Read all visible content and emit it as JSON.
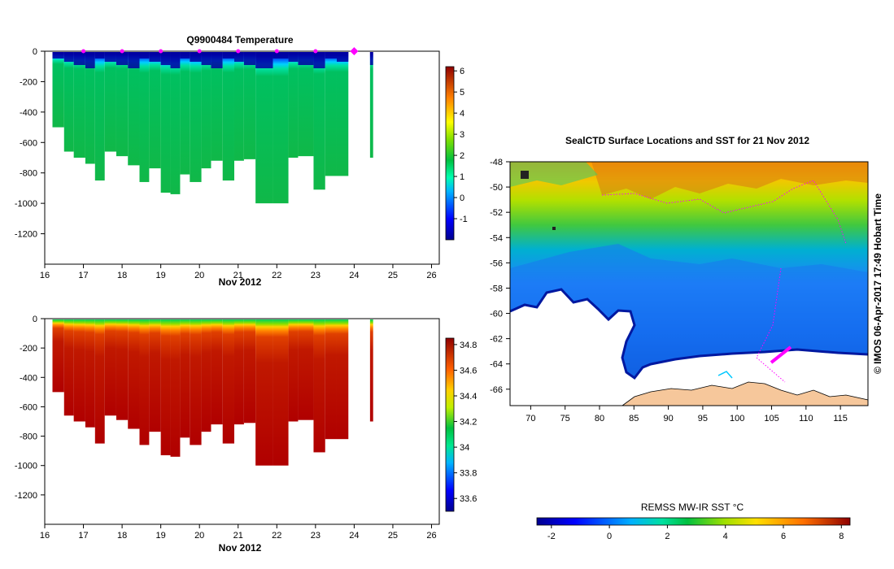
{
  "chart_data": [
    {
      "type": "heatmap",
      "title": "Q9900484  Temperature",
      "xlabel": "Nov 2012",
      "xlim": [
        16,
        26.2
      ],
      "ylim": [
        -1400,
        0
      ],
      "x_ticks": [
        "16",
        "17",
        "18",
        "19",
        "20",
        "21",
        "22",
        "23",
        "24",
        "25",
        "26"
      ],
      "y_ticks": [
        "0",
        "-200",
        "-400",
        "-600",
        "-800",
        "-1000",
        "-1200"
      ],
      "colorbar": {
        "range": [
          -2,
          6.2
        ],
        "ticks": [
          "6",
          "5",
          "4",
          "3",
          "2",
          "1",
          "0",
          "-1"
        ]
      },
      "profile_markers_day": [
        17,
        18,
        19,
        20,
        21,
        22,
        23
      ],
      "highlight_marker_day": 24,
      "profiles": {
        "day": [
          16.2,
          16.5,
          16.75,
          17.05,
          17.3,
          17.55,
          17.85,
          18.15,
          18.45,
          18.7,
          19.0,
          19.25,
          19.5,
          19.75,
          20.05,
          20.3,
          20.6,
          20.9,
          21.15,
          21.45,
          21.9,
          22.3,
          22.55,
          22.95,
          23.25,
          23.55,
          24.45
        ],
        "max_depth": [
          -500,
          -660,
          -700,
          -740,
          -850,
          -660,
          -690,
          -750,
          -860,
          -770,
          -930,
          -940,
          -810,
          -860,
          -770,
          -720,
          -850,
          -720,
          -710,
          -1000,
          -1000,
          -700,
          -690,
          -910,
          -820,
          -820,
          -700
        ]
      }
    },
    {
      "type": "heatmap",
      "title": "",
      "xlabel": "Nov 2012",
      "xlim": [
        16,
        26.2
      ],
      "ylim": [
        -1400,
        0
      ],
      "x_ticks": [
        "16",
        "17",
        "18",
        "19",
        "20",
        "21",
        "22",
        "23",
        "24",
        "25",
        "26"
      ],
      "y_ticks": [
        "0",
        "-200",
        "-400",
        "-600",
        "-800",
        "-1000",
        "-1200"
      ],
      "colorbar": {
        "range": [
          33.5,
          34.85
        ],
        "ticks": [
          "34.8",
          "34.6",
          "34.4",
          "34.2",
          "34",
          "33.8",
          "33.6"
        ]
      }
    },
    {
      "type": "heatmap",
      "title": "SealCTD Surface Locations and SST for 21 Nov 2012",
      "xlim": [
        67,
        119
      ],
      "ylim": [
        -67.3,
        -48
      ],
      "x_ticks": [
        "70",
        "75",
        "80",
        "85",
        "90",
        "95",
        "100",
        "105",
        "110",
        "115"
      ],
      "y_ticks": [
        "-48",
        "-50",
        "-52",
        "-54",
        "-56",
        "-58",
        "-60",
        "-62",
        "-64",
        "-66"
      ],
      "colorbar": {
        "label": "REMSS MW-IR SST °C",
        "range": [
          -2.5,
          8.3
        ],
        "ticks": [
          "-2",
          "0",
          "2",
          "4",
          "6",
          "8"
        ]
      },
      "side_label": "© IMOS 06-Apr-2017 17:49 Hobart Time",
      "colors": {
        "land": "#f6c79b",
        "no_data": "#ffffff",
        "track": "#ff00ff"
      }
    }
  ]
}
